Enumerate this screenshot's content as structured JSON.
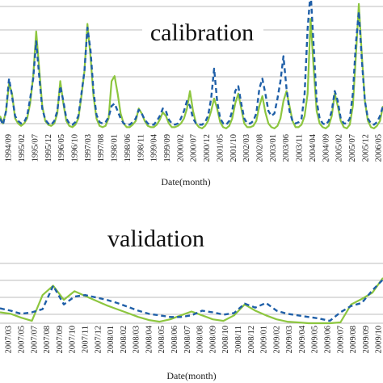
{
  "chart_data": [
    {
      "type": "line",
      "title": "calibration",
      "xlabel": "Date(month)",
      "ylabel": "",
      "grid": true,
      "ylim": [
        0,
        10
      ],
      "tick_labels": [
        "1994/09",
        "1995/02",
        "1995/07",
        "1995/12",
        "1996/05",
        "1996/10",
        "1997/03",
        "1997/08",
        "1998/01",
        "1998/06",
        "1998/11",
        "1999/04",
        "1999/09",
        "2000/02",
        "2000/07",
        "2000/12",
        "2001/05",
        "2001/10",
        "2002/03",
        "2002/08",
        "2003/01",
        "2003/06",
        "2003/11",
        "2004/04",
        "2004/09",
        "2005/02",
        "2005/07",
        "2005/12",
        "2006/05"
      ],
      "series": [
        {
          "style": "solid",
          "color": "#8dc63f",
          "values": [
            1.2,
            0.6,
            1.6,
            3.8,
            3.0,
            1.0,
            0.6,
            0.4,
            0.6,
            1.0,
            2.2,
            4.4,
            8.0,
            5.0,
            2.0,
            0.8,
            0.5,
            0.4,
            0.6,
            1.4,
            4.0,
            2.2,
            0.8,
            0.4,
            0.3,
            0.5,
            1.0,
            2.8,
            4.8,
            8.6,
            6.0,
            2.8,
            1.0,
            0.4,
            0.3,
            0.4,
            1.0,
            4.0,
            4.4,
            3.0,
            1.4,
            0.6,
            0.3,
            0.3,
            0.5,
            0.8,
            1.8,
            1.4,
            0.8,
            0.4,
            0.3,
            0.3,
            0.5,
            0.9,
            1.5,
            1.2,
            0.6,
            0.3,
            0.3,
            0.4,
            0.6,
            1.0,
            1.8,
            3.2,
            1.6,
            0.6,
            0.3,
            0.2,
            0.4,
            0.8,
            1.6,
            2.6,
            1.8,
            0.7,
            0.3,
            0.2,
            0.4,
            1.0,
            2.2,
            3.0,
            1.8,
            0.6,
            0.3,
            0.3,
            0.4,
            0.8,
            2.0,
            2.8,
            1.5,
            0.6,
            0.3,
            0.2,
            0.4,
            1.0,
            2.4,
            3.2,
            2.0,
            0.8,
            0.3,
            0.3,
            0.5,
            1.2,
            3.0,
            9.0,
            5.0,
            1.6,
            0.6,
            0.3,
            0.2,
            0.4,
            1.2,
            3.0,
            2.0,
            0.8,
            0.3,
            0.2,
            0.5,
            2.0,
            6.0,
            10.2,
            6.0,
            2.4,
            0.8,
            0.3,
            0.2,
            0.4,
            0.8,
            2.0
          ]
        },
        {
          "style": "dashed",
          "color": "#1f5fa8",
          "values": [
            1.0,
            0.5,
            1.6,
            4.2,
            2.8,
            1.2,
            0.8,
            0.6,
            0.7,
            1.2,
            2.6,
            4.2,
            7.2,
            4.4,
            1.8,
            0.9,
            0.6,
            0.5,
            0.8,
            1.6,
            3.6,
            2.4,
            1.0,
            0.6,
            0.5,
            0.7,
            1.2,
            3.0,
            4.8,
            8.3,
            6.5,
            3.2,
            1.3,
            0.7,
            0.6,
            0.7,
            1.1,
            2.0,
            2.2,
            1.6,
            1.0,
            0.6,
            0.5,
            0.5,
            0.7,
            1.0,
            1.7,
            1.4,
            0.9,
            0.6,
            0.5,
            0.5,
            0.8,
            1.2,
            1.8,
            1.6,
            0.9,
            0.6,
            0.5,
            0.6,
            1.0,
            1.6,
            2.4,
            2.0,
            1.0,
            0.6,
            0.5,
            0.5,
            0.7,
            1.2,
            2.6,
            5.0,
            2.4,
            1.0,
            0.6,
            0.5,
            0.8,
            1.6,
            3.2,
            3.6,
            2.2,
            1.0,
            0.6,
            0.6,
            0.8,
            1.4,
            3.4,
            4.2,
            3.0,
            1.6,
            1.2,
            1.4,
            2.6,
            4.0,
            6.0,
            3.4,
            1.6,
            0.8,
            0.6,
            0.7,
            1.0,
            3.0,
            8.2,
            11.2,
            6.8,
            2.4,
            1.0,
            0.6,
            0.5,
            0.8,
            1.6,
            3.2,
            2.4,
            1.0,
            0.6,
            0.6,
            1.0,
            3.0,
            7.0,
            9.6,
            5.6,
            2.4,
            1.0,
            0.6,
            0.5,
            0.7,
            1.2,
            2.0
          ]
        }
      ]
    },
    {
      "type": "line",
      "title": "validation",
      "xlabel": "Date(month)",
      "ylabel": "",
      "grid": true,
      "ylim": [
        0,
        6
      ],
      "tick_labels": [
        "2007/03",
        "2007/05",
        "2007/07",
        "2007/08",
        "2007/09",
        "2007/10",
        "2007/11",
        "2007/12",
        "2008/01",
        "2008/02",
        "2008/03",
        "2008/04",
        "2008/05",
        "2008/06",
        "2008/07",
        "2008/08",
        "2008/09",
        "2008/10",
        "2008/11",
        "2008/12",
        "2009/01",
        "2009/02",
        "2009/03",
        "2009/04",
        "2009/05",
        "2009/06",
        "2009/07",
        "2009/08",
        "2009/09",
        "2009/10"
      ],
      "series": [
        {
          "style": "solid",
          "color": "#8dc63f",
          "values": [
            1.4,
            1.2,
            0.7,
            0.3,
            3.6,
            4.8,
            3.0,
            4.1,
            3.5,
            2.9,
            2.3,
            1.8,
            1.3,
            0.8,
            0.4,
            0.2,
            0.5,
            1.0,
            1.5,
            1.0,
            0.5,
            0.3,
            1.0,
            2.4,
            1.6,
            1.0,
            0.5,
            0.2,
            0.1,
            0.0,
            0.0,
            0.0,
            0.1,
            2.4,
            3.1,
            3.9,
            5.8
          ]
        },
        {
          "style": "dashed",
          "color": "#1f5fa8",
          "values": [
            1.9,
            1.6,
            1.2,
            1.4,
            1.8,
            4.8,
            2.4,
            3.4,
            3.6,
            3.3,
            3.0,
            2.6,
            2.1,
            1.6,
            1.2,
            1.0,
            0.8,
            0.8,
            1.0,
            1.6,
            1.4,
            1.1,
            1.3,
            2.5,
            2.0,
            2.6,
            1.6,
            1.2,
            1.0,
            0.8,
            0.6,
            0.3,
            1.4,
            2.2,
            2.6,
            4.2,
            5.6
          ]
        }
      ]
    }
  ]
}
